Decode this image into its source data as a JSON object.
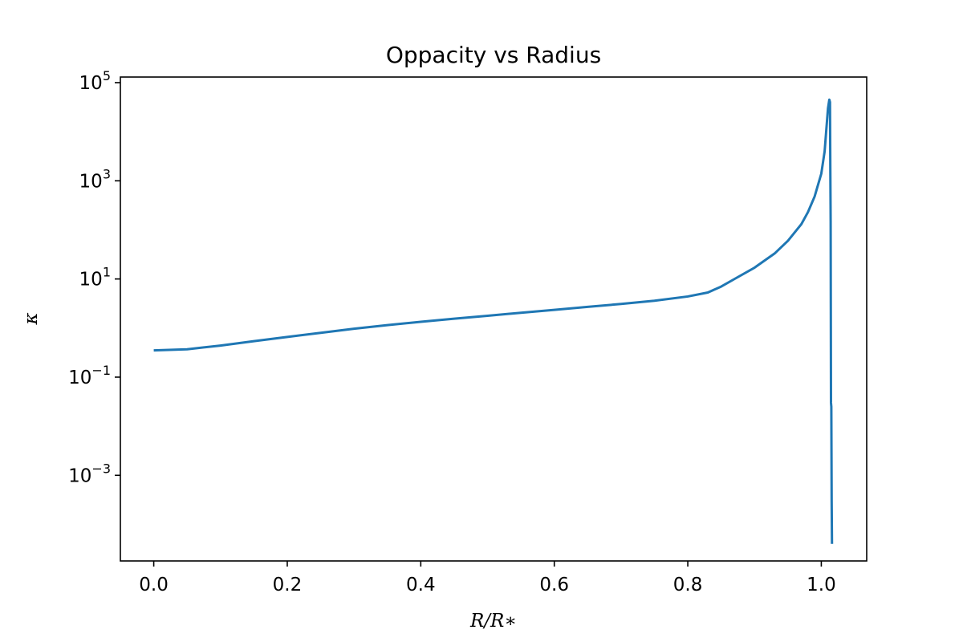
{
  "chart_data": {
    "type": "line",
    "title": "Oppacity vs Radius",
    "xlabel": "R/R∗",
    "ylabel": "κ",
    "yscale": "log",
    "xlim": [
      -0.05,
      1.068
    ],
    "ylim": [
      1.8e-05,
      130000
    ],
    "grid": false,
    "x_ticks": [
      {
        "value": 0.0,
        "label": "0.0"
      },
      {
        "value": 0.2,
        "label": "0.2"
      },
      {
        "value": 0.4,
        "label": "0.4"
      },
      {
        "value": 0.6,
        "label": "0.6"
      },
      {
        "value": 0.8,
        "label": "0.8"
      },
      {
        "value": 1.0,
        "label": "1.0"
      }
    ],
    "y_ticks": [
      {
        "value": 100000,
        "base": "10",
        "exp": "5"
      },
      {
        "value": 1000,
        "base": "10",
        "exp": "3"
      },
      {
        "value": 10,
        "base": "10",
        "exp": "1"
      },
      {
        "value": 0.1,
        "base": "10",
        "exp": "−1"
      },
      {
        "value": 0.001,
        "base": "10",
        "exp": "−3"
      }
    ],
    "series": [
      {
        "color": "#1f77b4",
        "x": [
          0.0,
          0.05,
          0.1,
          0.15,
          0.2,
          0.25,
          0.3,
          0.35,
          0.4,
          0.45,
          0.5,
          0.55,
          0.6,
          0.65,
          0.7,
          0.75,
          0.8,
          0.83,
          0.85,
          0.87,
          0.9,
          0.93,
          0.95,
          0.97,
          0.98,
          0.99,
          1.0,
          1.005,
          1.01,
          1.012,
          1.013,
          1.0135,
          1.014,
          1.0145,
          1.015,
          1.0155,
          1.016
        ],
        "y": [
          0.35,
          0.37,
          0.44,
          0.54,
          0.66,
          0.8,
          0.97,
          1.15,
          1.34,
          1.55,
          1.78,
          2.05,
          2.35,
          2.7,
          3.1,
          3.6,
          4.4,
          5.3,
          7.0,
          10.0,
          17.0,
          33.0,
          60.0,
          130.0,
          230.0,
          480.0,
          1400.0,
          4000.0,
          30000.0,
          45000.0,
          40000.0,
          2000.0,
          150.0,
          0.03,
          0.025,
          0.0003,
          4e-05
        ]
      }
    ]
  }
}
